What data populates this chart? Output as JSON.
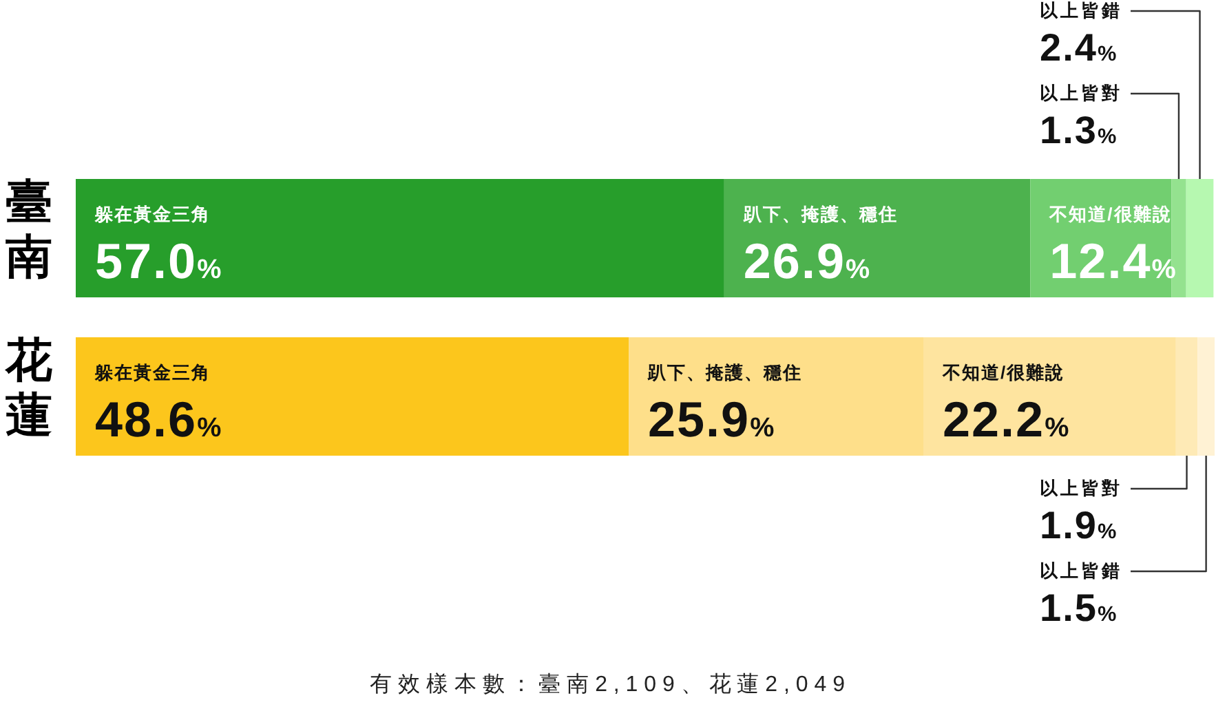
{
  "chart_data": {
    "type": "bar",
    "orientation": "horizontal",
    "stacked": true,
    "categories": [
      "臺南",
      "花蓮"
    ],
    "series": [
      {
        "name": "躲在黃金三角",
        "colors": [
          "#279e2b",
          "#fcc61c"
        ],
        "values": [
          57.0,
          48.6
        ],
        "value_labels": [
          "57.0%",
          "48.6%"
        ]
      },
      {
        "name": "趴下、掩護、穩住",
        "colors": [
          "#4db24e",
          "#fedf8a"
        ],
        "values": [
          26.9,
          25.9
        ],
        "value_labels": [
          "26.9%",
          "25.9%"
        ]
      },
      {
        "name": "不知道/很難說",
        "colors": [
          "#72cf70",
          "#fee49f"
        ],
        "values": [
          12.4,
          22.2
        ],
        "value_labels": [
          "12.4%",
          "22.2%"
        ]
      },
      {
        "name": "以上皆對",
        "colors": [
          "#94e28f",
          "#feeab6"
        ],
        "values": [
          1.3,
          1.9
        ],
        "value_labels": [
          "1.3%",
          "1.9%"
        ]
      },
      {
        "name": "以上皆錯",
        "colors": [
          "#b6f8b0",
          "#fff2d4"
        ],
        "values": [
          2.4,
          1.5
        ],
        "value_labels": [
          "2.4%",
          "1.5%"
        ]
      }
    ],
    "annotations": [
      "有 效 樣 本 數 ： 臺 南 2 , 1 0 9 、 花 蓮 2 , 0 4 9"
    ]
  }
}
